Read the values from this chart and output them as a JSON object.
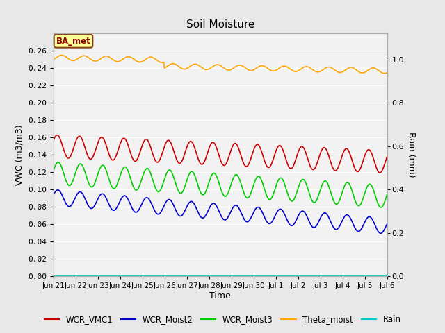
{
  "title": "Soil Moisture",
  "xlabel": "Time",
  "ylabel_left": "VWC (m3/m3)",
  "ylabel_right": "Rain (mm)",
  "ylim_left": [
    0.0,
    0.28
  ],
  "ylim_right": [
    0.0,
    1.12
  ],
  "yticks_left": [
    0.0,
    0.02,
    0.04,
    0.06,
    0.08,
    0.1,
    0.12,
    0.14,
    0.16,
    0.18,
    0.2,
    0.22,
    0.24,
    0.26
  ],
  "yticks_right": [
    0.0,
    0.2,
    0.4,
    0.6,
    0.8,
    1.0
  ],
  "xtick_labels": [
    "Jun 21",
    "Jun 22",
    "Jun 23",
    "Jun 24",
    "Jun 25",
    "Jun 26",
    "Jun 27",
    "Jun 28",
    "Jun 29",
    "Jun 30",
    "Jul 1",
    "Jul 2",
    "Jul 3",
    "Jul 4",
    "Jul 5",
    "Jul 6"
  ],
  "fig_bg_color": "#e8e8e8",
  "plot_bg_color": "#e8e8e8",
  "axes_bg_color": "#f2f2f2",
  "grid_color": "#ffffff",
  "annotation_text": "BA_met",
  "annotation_bg": "#ffff99",
  "annotation_border": "#8b4513",
  "annotation_text_color": "#8b0000",
  "colors": {
    "WCR_VMC1": "#cc0000",
    "WCR_Moist2": "#0000cc",
    "WCR_Moist3": "#00cc00",
    "Theta_moist": "#ffa500",
    "Rain": "#00cccc"
  },
  "n_points": 500
}
